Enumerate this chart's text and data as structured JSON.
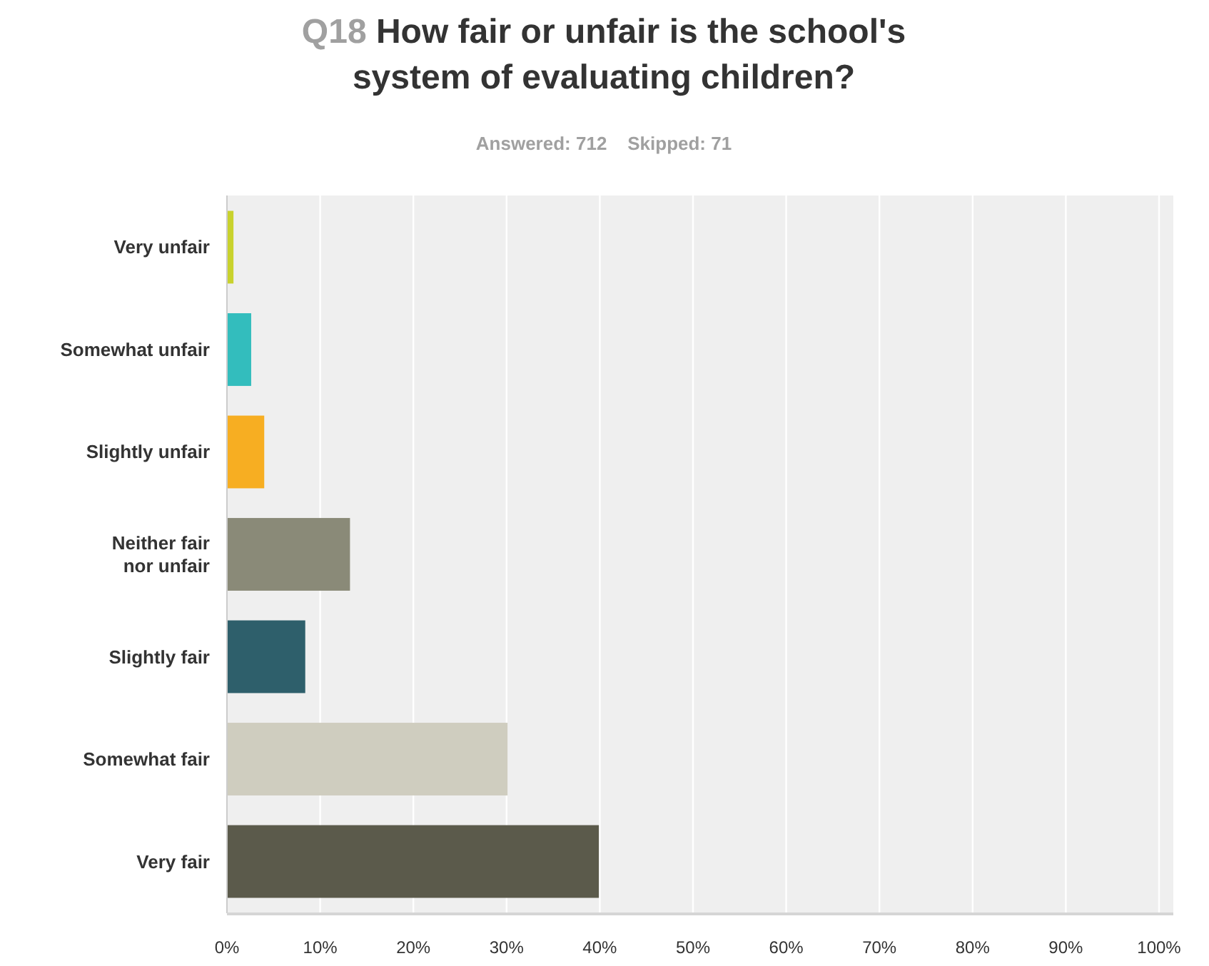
{
  "chart_data": {
    "type": "bar",
    "orientation": "horizontal",
    "title": "Q18 How fair or unfair is the school's system of evaluating children?",
    "subtitle": "Answered: 712    Skipped: 71",
    "categories": [
      "Very unfair",
      "Somewhat unfair",
      "Slightly unfair",
      "Neither fair nor unfair",
      "Slightly fair",
      "Somewhat fair",
      "Very fair"
    ],
    "values": [
      0.7,
      2.6,
      4.0,
      13.2,
      8.4,
      30.1,
      39.9
    ],
    "colors": [
      "#c9d22d",
      "#33bdbd",
      "#f7ae22",
      "#8a8a78",
      "#2e5f6b",
      "#cfcdbf",
      "#5b5a4b"
    ],
    "xlim": [
      0,
      100
    ],
    "xticks": [
      {
        "value": 0,
        "label": "0%"
      },
      {
        "value": 10,
        "label": "10%"
      },
      {
        "value": 20,
        "label": "20%"
      },
      {
        "value": 30,
        "label": "30%"
      },
      {
        "value": 40,
        "label": "40%"
      },
      {
        "value": 50,
        "label": "50%"
      },
      {
        "value": 60,
        "label": "60%"
      },
      {
        "value": 70,
        "label": "70%"
      },
      {
        "value": 80,
        "label": "80%"
      },
      {
        "value": 90,
        "label": "90%"
      },
      {
        "value": 100,
        "label": "100%"
      }
    ],
    "grid": "x"
  }
}
